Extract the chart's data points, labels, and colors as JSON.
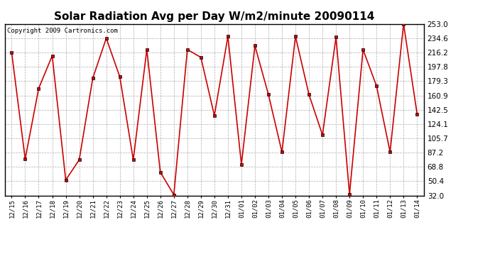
{
  "title": "Solar Radiation Avg per Day W/m2/minute 20090114",
  "copyright": "Copyright 2009 Cartronics.com",
  "dates": [
    "12/15",
    "12/16",
    "12/17",
    "12/18",
    "12/19",
    "12/20",
    "12/21",
    "12/22",
    "12/23",
    "12/24",
    "12/25",
    "12/26",
    "12/27",
    "12/28",
    "12/29",
    "12/30",
    "12/31",
    "01/01",
    "01/02",
    "01/03",
    "01/04",
    "01/05",
    "01/06",
    "01/07",
    "01/08",
    "01/09",
    "01/10",
    "01/11",
    "01/12",
    "01/13",
    "01/14"
  ],
  "values": [
    216.2,
    79.0,
    170.0,
    212.0,
    52.0,
    78.0,
    183.0,
    234.6,
    185.0,
    78.0,
    220.0,
    62.0,
    33.0,
    220.0,
    210.0,
    135.0,
    237.0,
    72.0,
    225.0,
    162.0,
    88.0,
    237.0,
    162.0,
    110.0,
    236.0,
    33.5,
    220.0,
    173.0,
    88.0,
    253.0,
    137.0
  ],
  "line_color": "#cc0000",
  "bg_color": "#ffffff",
  "grid_color": "#999999",
  "ylim": [
    32.0,
    253.0
  ],
  "yticks": [
    32.0,
    50.4,
    68.8,
    87.2,
    105.7,
    124.1,
    142.5,
    160.9,
    179.3,
    197.8,
    216.2,
    234.6,
    253.0
  ],
  "title_fontsize": 11,
  "copyright_fontsize": 6.5
}
